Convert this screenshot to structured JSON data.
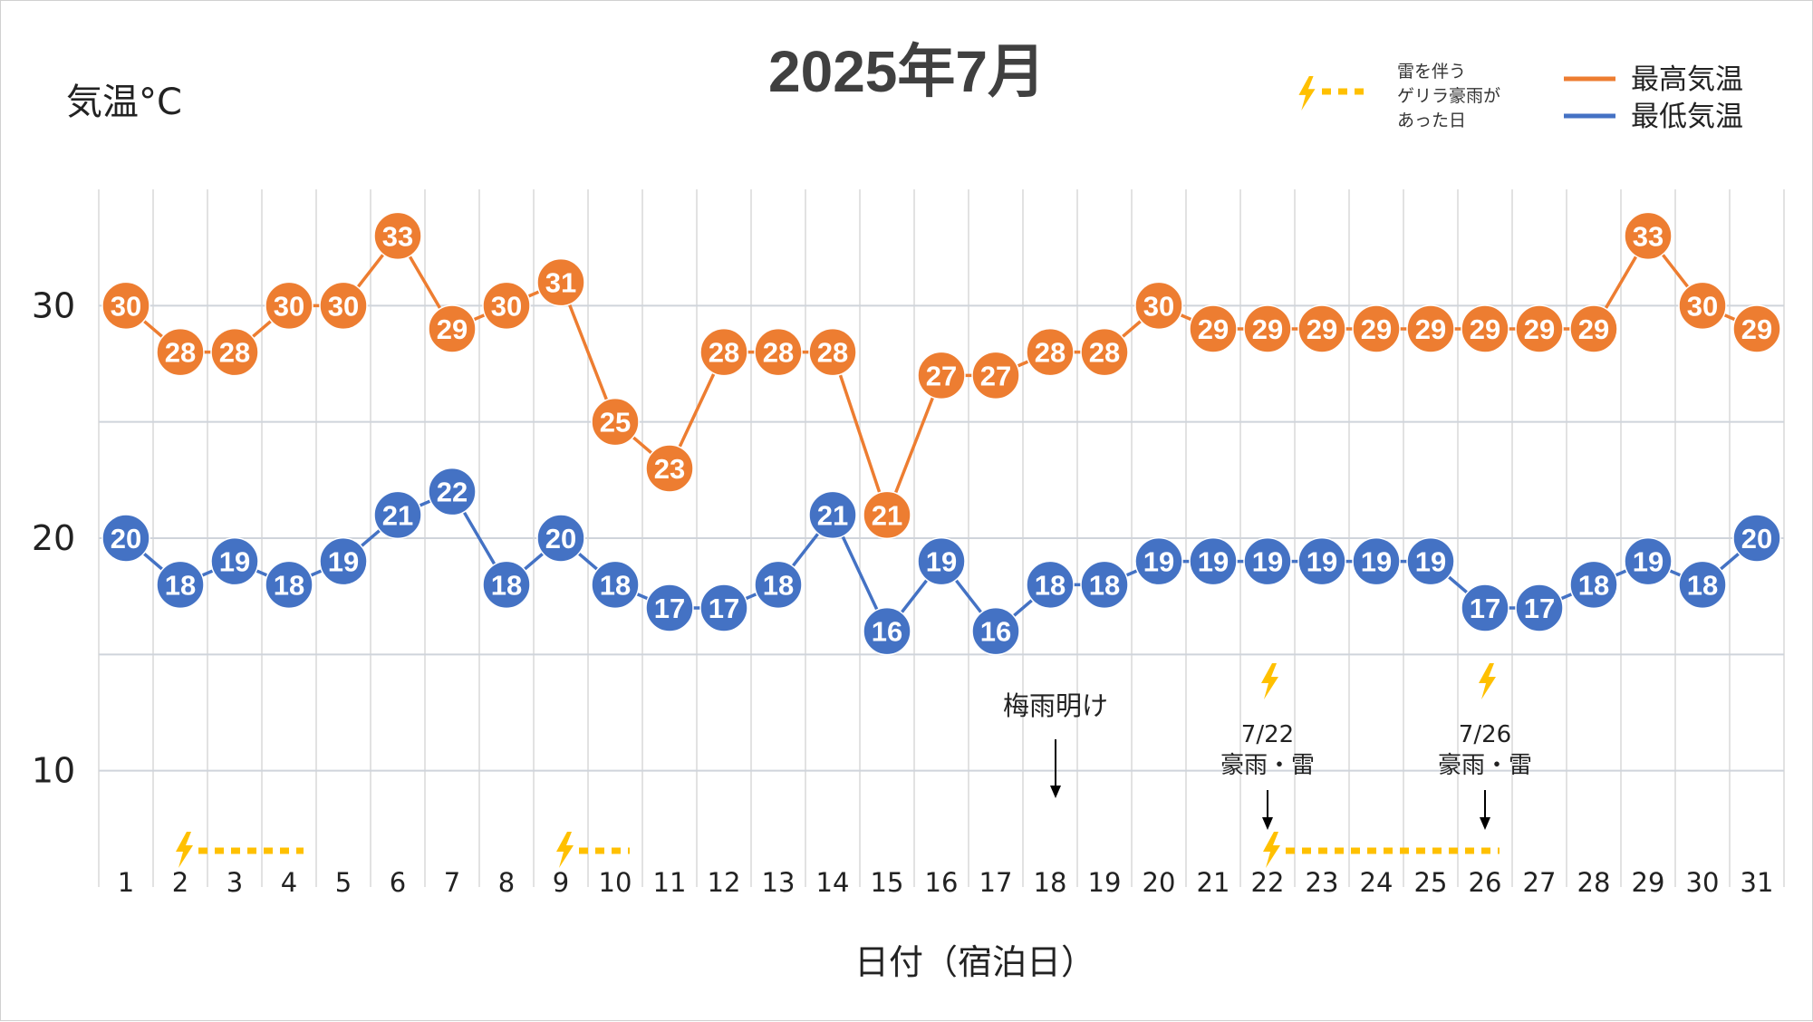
{
  "chart_data": {
    "type": "line",
    "title": "2025年7月",
    "ylabel": "気温°C",
    "xlabel": "日付（宿泊日）",
    "ylim": [
      5,
      35
    ],
    "yticks": [
      10,
      20,
      30
    ],
    "grid": true,
    "legend_position": "top-right",
    "categories": [
      "1",
      "2",
      "3",
      "4",
      "5",
      "6",
      "7",
      "8",
      "9",
      "10",
      "11",
      "12",
      "13",
      "14",
      "15",
      "16",
      "17",
      "18",
      "19",
      "20",
      "21",
      "22",
      "23",
      "24",
      "25",
      "26",
      "27",
      "28",
      "29",
      "30",
      "31"
    ],
    "series": [
      {
        "name": "最高気温",
        "color": "#ED7D31",
        "values": [
          30,
          28,
          28,
          30,
          30,
          33,
          29,
          30,
          31,
          25,
          23,
          28,
          28,
          28,
          21,
          27,
          27,
          28,
          28,
          30,
          29,
          29,
          29,
          29,
          29,
          29,
          29,
          29,
          33,
          30,
          29
        ]
      },
      {
        "name": "最低気温",
        "color": "#4472C4",
        "values": [
          20,
          18,
          19,
          18,
          19,
          21,
          22,
          18,
          20,
          18,
          17,
          17,
          18,
          21,
          16,
          19,
          16,
          18,
          18,
          19,
          19,
          19,
          19,
          19,
          19,
          17,
          17,
          18,
          19,
          18,
          20
        ]
      }
    ],
    "storm_legend": {
      "lines": [
        "雷を伴う",
        "ゲリラ豪雨が",
        "あった日"
      ],
      "color": "#FFC000",
      "icon": "lightning-icon"
    },
    "storm_periods": [
      {
        "start": "2",
        "end": "4"
      },
      {
        "start": "9",
        "end": "10"
      },
      {
        "start": "22",
        "end": "26"
      }
    ],
    "annotations": [
      {
        "day": "18",
        "lines": [
          "梅雨明け"
        ],
        "lightning": false
      },
      {
        "day": "22",
        "lines": [
          "7/22",
          "豪雨・雷"
        ],
        "lightning": true
      },
      {
        "day": "26",
        "lines": [
          "7/26",
          "豪雨・雷"
        ],
        "lightning": true
      }
    ]
  }
}
